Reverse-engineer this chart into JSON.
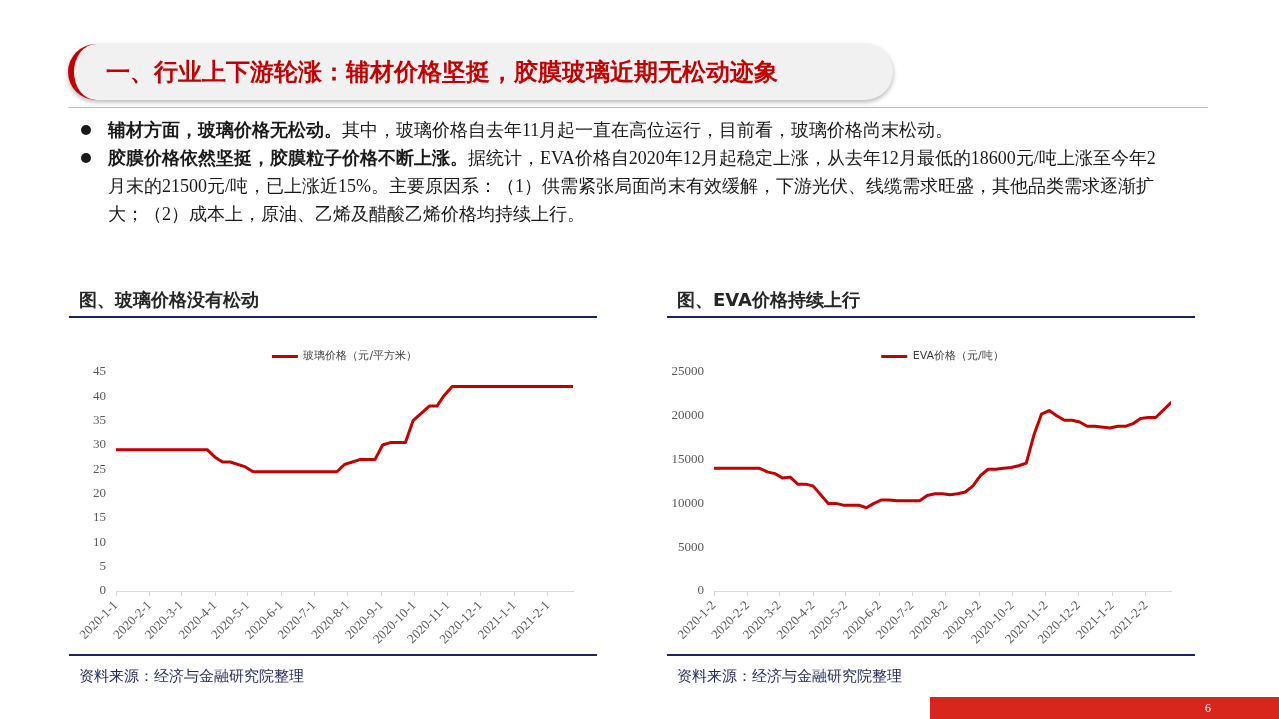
{
  "chart_data": [
    {
      "type": "other",
      "title": "一、行业上下游轮涨：辅材价格坚挺，胶膜玻璃近期无松动迹象",
      "annotations": [
        "辅材方面，玻璃价格无松动。",
        "其中，玻璃价格自去年11月起一直在高位运行，目前看，玻璃价格尚末松动。",
        "胶膜价格依然坚挺，胶膜粒子价格不断上涨。",
        "据统计，EVA价格自2020年12月起稳定上涨，从去年12月最低的18600元/吨上涨至今年2月末的21500元/吨，已上涨近15%。主要原因系：（1）供需紧张局面尚末有效缓解，下游光伏、线缆需求旺盛，其他品类需求逐渐扩大；（2）成本上，原油、乙烯及醋酸乙烯价格均持续上行。",
        "6"
      ]
    },
    {
      "type": "line",
      "title": "图、玻璃价格没有松动",
      "x": [
        "2020-01-01",
        "2020-03-25",
        "2020-04-01",
        "2020-04-08",
        "2020-04-15",
        "2020-04-29",
        "2020-05-06",
        "2020-07-22",
        "2020-07-29",
        "2020-08-12",
        "2020-08-26",
        "2020-09-02",
        "2020-09-09",
        "2020-09-23",
        "2020-09-30",
        "2020-10-15",
        "2020-10-22",
        "2020-10-28",
        "2020-11-05",
        "2021-02-24"
      ],
      "series": [
        {
          "name": "玻璃价格（元/平方米）",
          "color": "#c00000",
          "values": [
            29,
            29,
            27.5,
            26.5,
            26.5,
            25.5,
            24.5,
            24.5,
            26,
            27,
            27,
            30,
            30.5,
            30.5,
            35,
            38,
            38,
            40,
            42,
            42
          ]
        }
      ],
      "xlim": [
        "2020-01-01",
        "2021-02-24"
      ],
      "xticks": [
        {
          "value": "2020-01-01",
          "label": "2020-1-1"
        },
        {
          "value": "2020-02-01",
          "label": "2020-2-1"
        },
        {
          "value": "2020-03-01",
          "label": "2020-3-1"
        },
        {
          "value": "2020-04-01",
          "label": "2020-4-1"
        },
        {
          "value": "2020-05-01",
          "label": "2020-5-1"
        },
        {
          "value": "2020-06-01",
          "label": "2020-6-1"
        },
        {
          "value": "2020-07-01",
          "label": "2020-7-1"
        },
        {
          "value": "2020-08-01",
          "label": "2020-8-1"
        },
        {
          "value": "2020-09-01",
          "label": "2020-9-1"
        },
        {
          "value": "2020-10-01",
          "label": "2020-10-1"
        },
        {
          "value": "2020-11-01",
          "label": "2020-11-1"
        },
        {
          "value": "2020-12-01",
          "label": "2020-12-1"
        },
        {
          "value": "2021-01-01",
          "label": "2021-1-1"
        },
        {
          "value": "2021-02-01",
          "label": "2021-2-1"
        }
      ],
      "ylim": [
        0,
        45
      ],
      "yticks": [
        0,
        5,
        10,
        15,
        20,
        25,
        30,
        35,
        40,
        45
      ],
      "legend": "top",
      "annotations": [
        "资料来源：经济与金融研究院整理"
      ]
    },
    {
      "type": "line",
      "title": "图、EVA价格持续上行",
      "x": [
        "2020-01-02",
        "2020-02-13",
        "2020-02-20",
        "2020-02-27",
        "2020-03-05",
        "2020-03-12",
        "2020-03-19",
        "2020-03-26",
        "2020-04-02",
        "2020-04-16",
        "2020-04-23",
        "2020-04-30",
        "2020-05-14",
        "2020-05-21",
        "2020-05-28",
        "2020-06-04",
        "2020-06-11",
        "2020-06-18",
        "2020-07-09",
        "2020-07-16",
        "2020-07-23",
        "2020-07-30",
        "2020-08-06",
        "2020-08-13",
        "2020-08-20",
        "2020-08-27",
        "2020-09-03",
        "2020-09-10",
        "2020-09-17",
        "2020-09-24",
        "2020-10-01",
        "2020-10-08",
        "2020-10-15",
        "2020-10-22",
        "2020-10-29",
        "2020-11-05",
        "2020-11-12",
        "2020-11-19",
        "2020-11-26",
        "2020-12-03",
        "2020-12-10",
        "2020-12-17",
        "2020-12-31",
        "2021-01-07",
        "2021-01-14",
        "2021-01-21",
        "2021-01-28",
        "2021-02-04",
        "2021-02-11",
        "2021-02-25"
      ],
      "series": [
        {
          "name": "EVA价格（元/吨）",
          "color": "#c00000",
          "values": [
            14000,
            14000,
            13600,
            13400,
            12900,
            13000,
            12200,
            12200,
            12000,
            10000,
            10000,
            9800,
            9800,
            9500,
            10000,
            10400,
            10400,
            10300,
            10300,
            10900,
            11100,
            11100,
            11000,
            11100,
            11300,
            12000,
            13200,
            13900,
            13900,
            14000,
            14100,
            14300,
            14600,
            17800,
            20200,
            20600,
            20000,
            19500,
            19500,
            19300,
            18800,
            18800,
            18600,
            18800,
            18800,
            19100,
            19700,
            19800,
            19800,
            21500
          ]
        }
      ],
      "xlim": [
        "2020-01-02",
        "2021-02-25"
      ],
      "xticks": [
        {
          "value": "2020-01-02",
          "label": "2020-1-2"
        },
        {
          "value": "2020-02-02",
          "label": "2020-2-2"
        },
        {
          "value": "2020-03-02",
          "label": "2020-3-2"
        },
        {
          "value": "2020-04-02",
          "label": "2020-4-2"
        },
        {
          "value": "2020-05-02",
          "label": "2020-5-2"
        },
        {
          "value": "2020-06-02",
          "label": "2020-6-2"
        },
        {
          "value": "2020-07-02",
          "label": "2020-7-2"
        },
        {
          "value": "2020-08-02",
          "label": "2020-8-2"
        },
        {
          "value": "2020-09-02",
          "label": "2020-9-2"
        },
        {
          "value": "2020-10-02",
          "label": "2020-10-2"
        },
        {
          "value": "2020-11-02",
          "label": "2020-11-2"
        },
        {
          "value": "2020-12-02",
          "label": "2020-12-2"
        },
        {
          "value": "2021-01-02",
          "label": "2021-1-2"
        },
        {
          "value": "2021-02-02",
          "label": "2021-2-2"
        }
      ],
      "ylim": [
        0,
        25000
      ],
      "yticks": [
        0,
        5000,
        10000,
        15000,
        20000,
        25000
      ],
      "legend": "top",
      "annotations": [
        "资料来源：经济与金融研究院整理"
      ]
    }
  ]
}
